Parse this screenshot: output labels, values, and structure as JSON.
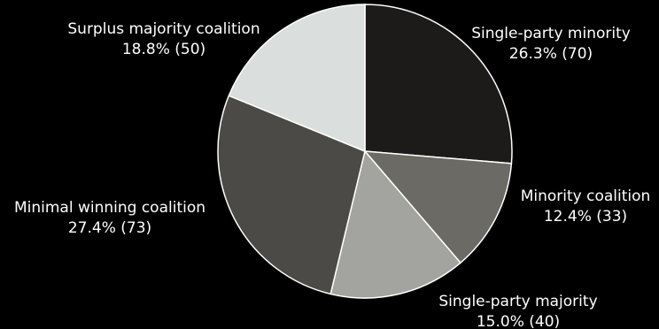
{
  "chart_data": {
    "type": "pie",
    "title": "",
    "slices": [
      {
        "name": "Single-party minority",
        "percent_label": "26.3% (70)",
        "percent": 26.3,
        "count": 70,
        "color": "#1c1b1a"
      },
      {
        "name": "Minority coalition",
        "percent_label": "12.4% (33)",
        "percent": 12.4,
        "count": 33,
        "color": "#6b6a65"
      },
      {
        "name": "Single-party majority",
        "percent_label": "15.0% (40)",
        "percent": 15.0,
        "count": 40,
        "color": "#a3a3a0"
      },
      {
        "name": "Minimal winning coalition",
        "percent_label": "27.4% (73)",
        "percent": 27.4,
        "count": 73,
        "color": "#4b4a46"
      },
      {
        "name": "Surplus majority coalition",
        "percent_label": "18.8% (50)",
        "percent": 18.8,
        "count": 50,
        "color": "#dadedd"
      }
    ],
    "start_angle": "12 o'clock",
    "direction": "clockwise",
    "legend": "none"
  }
}
